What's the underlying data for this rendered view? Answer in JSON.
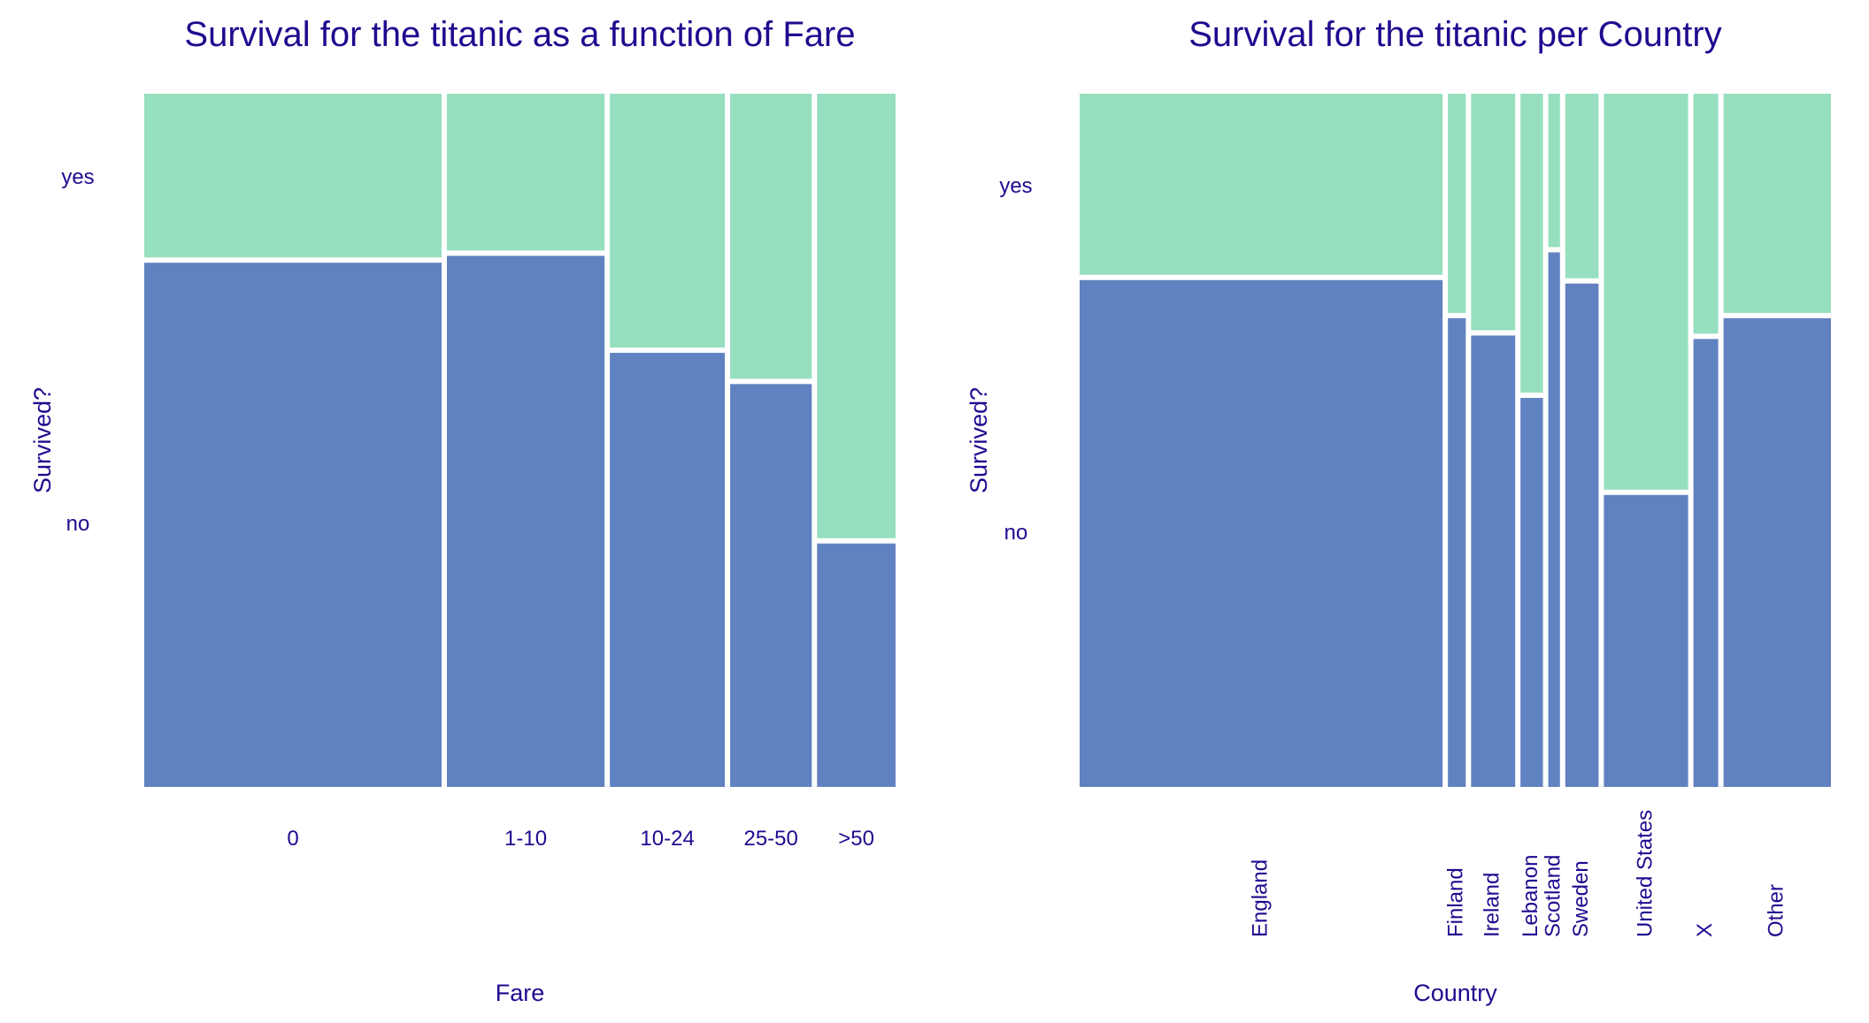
{
  "theme": {
    "text_color": "#1f0a8f",
    "no_color": "#6182c0",
    "yes_color": "#96dfbf",
    "background": "#ffffff"
  },
  "chart_data": [
    {
      "type": "mosaic",
      "title": "Survival for the titanic as a function of Fare",
      "xlabel": "Fare",
      "ylabel": "Survived?",
      "y_levels": [
        "no",
        "yes"
      ],
      "categories": [
        "0",
        "1-10",
        "10-24",
        "25-50",
        ">50"
      ],
      "widths": [
        0.39,
        0.21,
        0.155,
        0.112,
        0.108
      ],
      "survived_yes": [
        0.24,
        0.23,
        0.37,
        0.415,
        0.645
      ],
      "grid": false,
      "legend": "none"
    },
    {
      "type": "mosaic",
      "title": "Survival for the titanic per Country",
      "xlabel": "Country",
      "ylabel": "Survived?",
      "y_levels": [
        "no",
        "yes"
      ],
      "categories": [
        "England",
        "Finland",
        "Ireland",
        "Lebanon",
        "Scotland",
        "Sweden",
        "United States",
        "X",
        "Other"
      ],
      "widths": [
        0.477,
        0.03,
        0.064,
        0.036,
        0.022,
        0.05,
        0.116,
        0.039,
        0.146
      ],
      "survived_yes": [
        0.265,
        0.32,
        0.345,
        0.435,
        0.225,
        0.27,
        0.575,
        0.35,
        0.32
      ],
      "grid": false,
      "legend": "none"
    }
  ]
}
